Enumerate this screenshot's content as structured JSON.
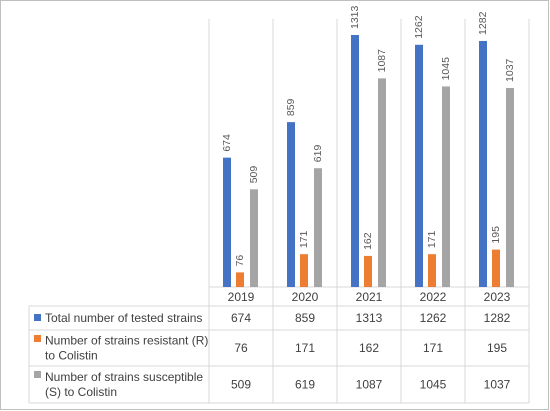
{
  "chart_data": {
    "type": "bar",
    "categories": [
      "2019",
      "2020",
      "2021",
      "2022",
      "2023"
    ],
    "ylim": [
      0,
      1313
    ],
    "grid": false,
    "legend": "data table rows",
    "series": [
      {
        "name": "Total number of tested strains",
        "label_lines": [
          "Total number of tested strains"
        ],
        "color": "#4472c4",
        "values": [
          674,
          859,
          1313,
          1262,
          1282
        ]
      },
      {
        "name": "Number of strains resistant (R) to Colistin",
        "label_lines": [
          "Number of strains resistant (R)",
          "to Colistin"
        ],
        "color": "#ed7d31",
        "values": [
          76,
          171,
          162,
          171,
          195
        ]
      },
      {
        "name": "Number of strains susceptible (S) to Colistin",
        "label_lines": [
          "Number of strains susceptible",
          "(S) to Colistin"
        ],
        "color": "#a5a5a5",
        "values": [
          509,
          619,
          1087,
          1045,
          1037
        ]
      }
    ]
  }
}
